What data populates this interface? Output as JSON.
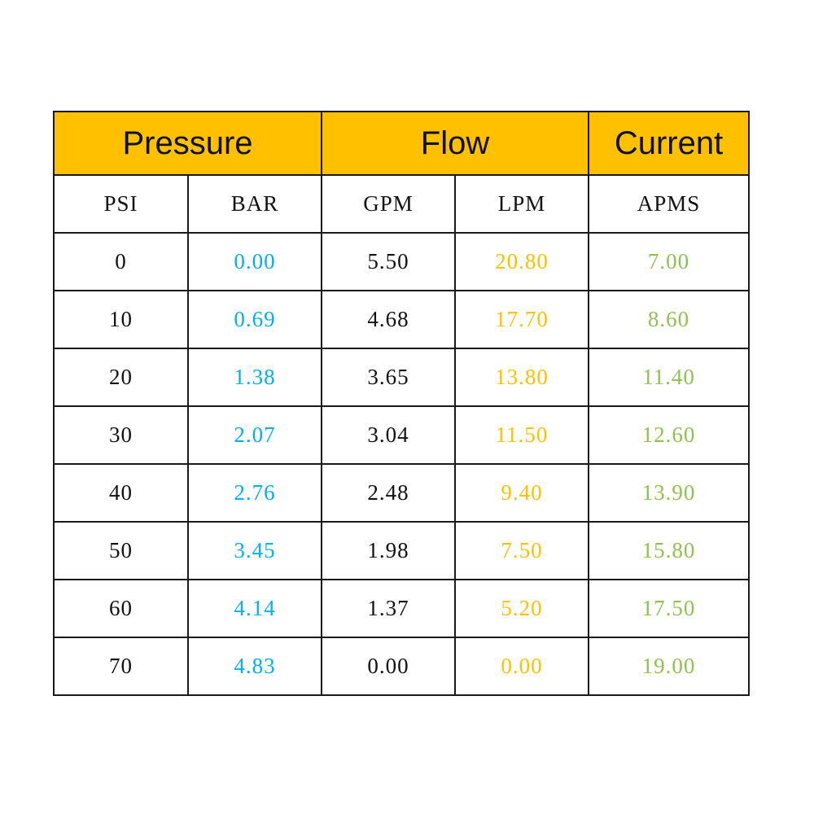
{
  "groups": [
    {
      "label": "Pressure"
    },
    {
      "label": "Flow"
    },
    {
      "label": "Current"
    }
  ],
  "columns": [
    "PSI",
    "BAR",
    "GPM",
    "LPM",
    "APMS"
  ],
  "colors": {
    "header_bg": "#FFC000",
    "bar": "#00B0F0",
    "lpm": "#FFC000",
    "amps": "#92C050"
  },
  "rows": [
    [
      "0",
      "0.00",
      "5.50",
      "20.80",
      "7.00"
    ],
    [
      "10",
      "0.69",
      "4.68",
      "17.70",
      "8.60"
    ],
    [
      "20",
      "1.38",
      "3.65",
      "13.80",
      "11.40"
    ],
    [
      "30",
      "2.07",
      "3.04",
      "11.50",
      "12.60"
    ],
    [
      "40",
      "2.76",
      "2.48",
      "9.40",
      "13.90"
    ],
    [
      "50",
      "3.45",
      "1.98",
      "7.50",
      "15.80"
    ],
    [
      "60",
      "4.14",
      "1.37",
      "5.20",
      "17.50"
    ],
    [
      "70",
      "4.83",
      "0.00",
      "0.00",
      "19.00"
    ]
  ]
}
